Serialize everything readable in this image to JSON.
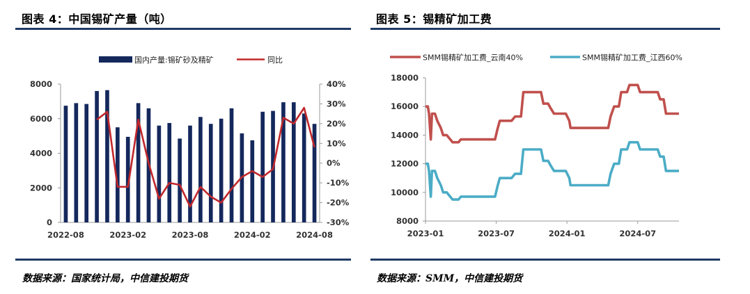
{
  "left": {
    "title": "图表 4：中国锡矿产量（吨）",
    "source": "数据来源：国家统计局，中信建投期货"
  },
  "right": {
    "title": "图表 5：锡精矿加工费",
    "source": "数据来源：SMM，中信建投期货"
  },
  "colors": {
    "bar": "#14285c",
    "yoy": "#c0282c",
    "yunnan": "#c0504d",
    "jiangxi": "#4bacc6",
    "rule": "#1f3a64",
    "grid_axis": "#999999"
  },
  "chart_data": [
    {
      "type": "bar",
      "title": "图表 4：中国锡矿产量（吨）",
      "series": [
        {
          "name": "国内产量:锡矿砂及精矿",
          "kind": "bar",
          "axis": "left",
          "values": [
            6750,
            6900,
            6850,
            7600,
            7650,
            5500,
            4950,
            6900,
            6600,
            5600,
            5750,
            4850,
            5600,
            6100,
            5700,
            6000,
            6600,
            5150,
            4750,
            6400,
            6450,
            6950,
            6950,
            6300,
            5700
          ]
        },
        {
          "name": "同比",
          "kind": "line",
          "axis": "right",
          "values": [
            null,
            null,
            null,
            22,
            26,
            -12,
            -12,
            22,
            0,
            -18,
            -10,
            -11,
            -22,
            -12,
            -17,
            -20,
            -13,
            -7,
            -4,
            -7,
            -3,
            23,
            20,
            28,
            8
          ]
        }
      ],
      "categories": [
        "2022-08",
        "2022-09",
        "2022-10",
        "2022-11",
        "2022-12",
        "2023-01",
        "2023-02",
        "2023-03",
        "2023-04",
        "2023-05",
        "2023-06",
        "2023-07",
        "2023-08",
        "2023-09",
        "2023-10",
        "2023-11",
        "2023-12",
        "2024-01",
        "2024-02",
        "2024-03",
        "2024-04",
        "2024-05",
        "2024-06",
        "2024-07",
        "2024-08"
      ],
      "x_tick_labels": [
        "2022-08",
        "2023-02",
        "2023-08",
        "2024-02",
        "2024-08"
      ],
      "y_left_ticks": [
        "8000",
        "6000",
        "4000",
        "2000",
        "0"
      ],
      "y_right_ticks": [
        "40%",
        "30%",
        "20%",
        "10%",
        "0%",
        "-10%",
        "-20%",
        "-30%"
      ],
      "ylim_left": [
        0,
        8000
      ],
      "ylim_right": [
        -30,
        40
      ]
    },
    {
      "type": "line",
      "title": "图表 5：锡精矿加工费",
      "series": [
        {
          "name": "SMM锡精矿加工费_云南40%",
          "points": [
            [
              0,
              16000
            ],
            [
              0.2,
              16000
            ],
            [
              0.3,
              15500
            ],
            [
              0.45,
              13700
            ],
            [
              0.55,
              15500
            ],
            [
              0.8,
              15500
            ],
            [
              1.0,
              15000
            ],
            [
              1.3,
              14500
            ],
            [
              1.5,
              14000
            ],
            [
              1.8,
              14000
            ],
            [
              2.0,
              13800
            ],
            [
              2.3,
              13500
            ],
            [
              2.8,
              13500
            ],
            [
              3.0,
              13700
            ],
            [
              3.6,
              13700
            ],
            [
              4.6,
              13700
            ],
            [
              5.4,
              13700
            ],
            [
              5.9,
              13700
            ],
            [
              6.1,
              14400
            ],
            [
              6.3,
              15000
            ],
            [
              7.3,
              15000
            ],
            [
              7.6,
              15300
            ],
            [
              8.1,
              15300
            ],
            [
              8.3,
              17000
            ],
            [
              9.8,
              17000
            ],
            [
              10.0,
              16200
            ],
            [
              10.4,
              16200
            ],
            [
              10.6,
              15900
            ],
            [
              10.9,
              15500
            ],
            [
              11.9,
              15500
            ],
            [
              12.2,
              15000
            ],
            [
              12.3,
              14500
            ],
            [
              14.2,
              14500
            ],
            [
              15.0,
              14500
            ],
            [
              15.5,
              14500
            ],
            [
              15.7,
              15300
            ],
            [
              16.0,
              16000
            ],
            [
              16.4,
              16000
            ],
            [
              16.6,
              17000
            ],
            [
              17.1,
              17000
            ],
            [
              17.3,
              17500
            ],
            [
              18.0,
              17500
            ],
            [
              18.2,
              17000
            ],
            [
              19.3,
              17000
            ],
            [
              19.7,
              17000
            ],
            [
              19.9,
              16500
            ],
            [
              20.2,
              16500
            ],
            [
              20.4,
              15500
            ],
            [
              21.5,
              15500
            ]
          ]
        },
        {
          "name": "SMM锡精矿加工费_江西60%",
          "points": [
            [
              0,
              12000
            ],
            [
              0.2,
              12000
            ],
            [
              0.3,
              11500
            ],
            [
              0.45,
              9700
            ],
            [
              0.55,
              11500
            ],
            [
              0.8,
              11500
            ],
            [
              1.0,
              11000
            ],
            [
              1.3,
              10500
            ],
            [
              1.5,
              10000
            ],
            [
              1.8,
              10000
            ],
            [
              2.0,
              9800
            ],
            [
              2.3,
              9500
            ],
            [
              2.8,
              9500
            ],
            [
              3.0,
              9700
            ],
            [
              3.6,
              9700
            ],
            [
              4.6,
              9700
            ],
            [
              5.4,
              9700
            ],
            [
              5.9,
              9700
            ],
            [
              6.1,
              10400
            ],
            [
              6.3,
              11000
            ],
            [
              7.3,
              11000
            ],
            [
              7.6,
              11300
            ],
            [
              8.1,
              11300
            ],
            [
              8.3,
              13000
            ],
            [
              9.8,
              13000
            ],
            [
              10.0,
              12200
            ],
            [
              10.4,
              12200
            ],
            [
              10.6,
              11900
            ],
            [
              10.9,
              11500
            ],
            [
              11.9,
              11500
            ],
            [
              12.2,
              11000
            ],
            [
              12.3,
              10500
            ],
            [
              14.2,
              10500
            ],
            [
              15.0,
              10500
            ],
            [
              15.5,
              10500
            ],
            [
              15.7,
              11300
            ],
            [
              16.0,
              12000
            ],
            [
              16.4,
              12000
            ],
            [
              16.6,
              13000
            ],
            [
              17.1,
              13000
            ],
            [
              17.3,
              13500
            ],
            [
              18.0,
              13500
            ],
            [
              18.2,
              13000
            ],
            [
              19.3,
              13000
            ],
            [
              19.7,
              13000
            ],
            [
              19.9,
              12500
            ],
            [
              20.2,
              12500
            ],
            [
              20.4,
              11500
            ],
            [
              21.5,
              11500
            ]
          ]
        }
      ],
      "x_tick_labels": [
        "2023-01",
        "2023-07",
        "2024-01",
        "2024-07"
      ],
      "x_tick_values": [
        0,
        6,
        12,
        18
      ],
      "y_ticks": [
        "18000",
        "16000",
        "14000",
        "12000",
        "10000",
        "8000"
      ],
      "xlim": [
        0,
        21.5
      ],
      "ylim": [
        8000,
        18000
      ]
    }
  ]
}
